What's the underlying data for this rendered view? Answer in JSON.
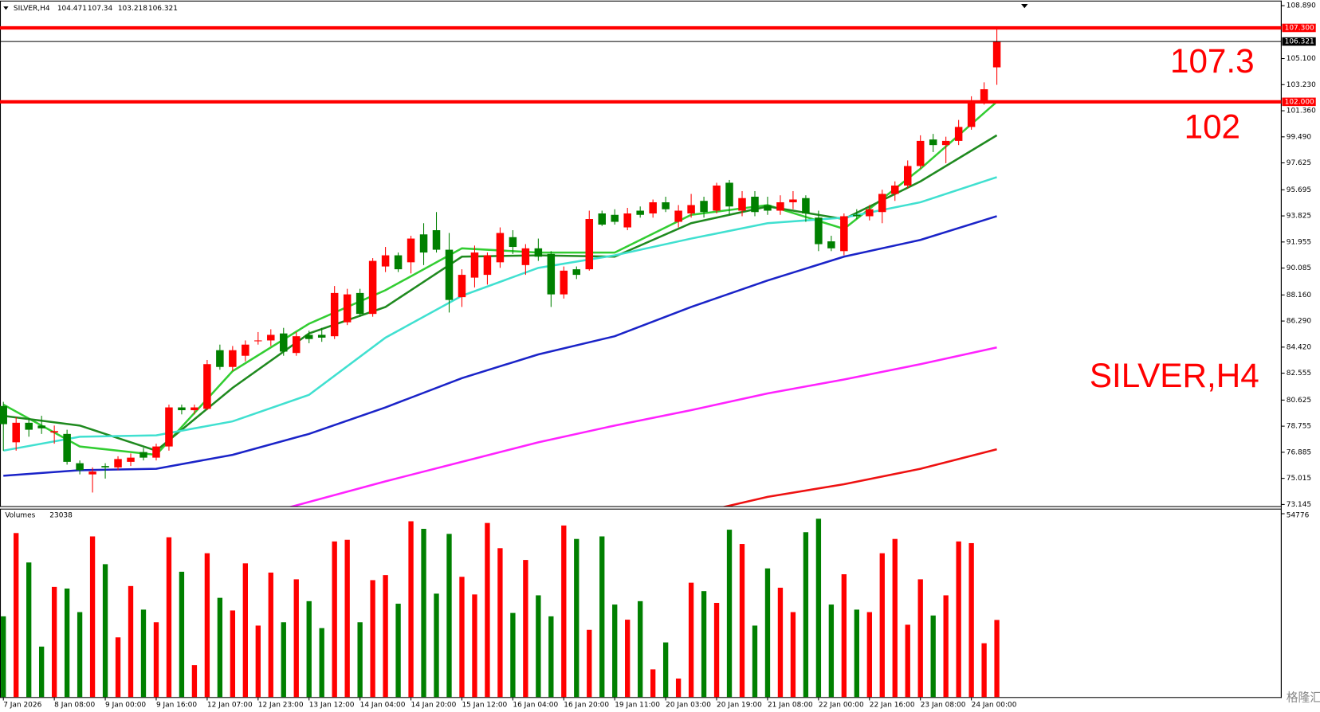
{
  "chart_data": {
    "type": "candlestick",
    "title": "SILVER,H4",
    "categories": [
      "7 Jan 2026",
      null,
      null,
      null,
      "8 Jan 08:00",
      null,
      null,
      null,
      "9 Jan 00:00",
      null,
      null,
      null,
      "9 Jan 16:00",
      null,
      null,
      null,
      "12 Jan 07:00",
      null,
      null,
      null,
      "12 Jan 23:00",
      null,
      null,
      null,
      "13 Jan 12:00",
      null,
      null,
      null,
      "14 Jan 04:00",
      null,
      null,
      null,
      "14 Jan 20:00",
      null,
      null,
      null,
      "15 Jan 12:00",
      null,
      null,
      null,
      "16 Jan 04:00",
      null,
      null,
      null,
      "16 Jan 20:00",
      null,
      null,
      null,
      "19 Jan 11:00",
      null,
      null,
      null,
      "20 Jan 03:00",
      null,
      null,
      null,
      "20 Jan 19:00",
      null,
      null,
      null,
      "21 Jan 08:00",
      null,
      null,
      null,
      "22 Jan 00:00",
      null,
      null,
      null,
      "22 Jan 16:00",
      null,
      null,
      null,
      "23 Jan 08:00",
      null,
      null,
      null,
      "24 Jan 00:00",
      null,
      null
    ],
    "up_color": "#ff0000",
    "down_color": "#008000",
    "ohlc": [
      [
        80.2,
        80.5,
        77.0,
        78.9
      ],
      [
        77.6,
        79.4,
        77.0,
        79.0
      ],
      [
        79.0,
        79.3,
        78.0,
        78.5
      ],
      [
        78.8,
        79.5,
        78.2,
        78.6
      ],
      [
        78.3,
        78.8,
        77.5,
        78.4
      ],
      [
        78.2,
        78.5,
        76.0,
        76.2
      ],
      [
        76.1,
        76.3,
        75.3,
        75.6
      ],
      [
        75.3,
        75.8,
        74.0,
        75.5
      ],
      [
        75.9,
        76.1,
        75.0,
        75.8
      ],
      [
        75.8,
        76.6,
        75.6,
        76.4
      ],
      [
        76.2,
        76.8,
        75.9,
        76.5
      ],
      [
        76.9,
        77.2,
        76.3,
        76.5
      ],
      [
        76.5,
        77.5,
        76.3,
        77.3
      ],
      [
        77.3,
        80.3,
        77.0,
        80.1
      ],
      [
        80.1,
        80.3,
        79.6,
        79.9
      ],
      [
        79.9,
        80.3,
        79.6,
        80.1
      ],
      [
        80.0,
        83.5,
        79.9,
        83.2
      ],
      [
        84.2,
        84.6,
        82.8,
        83.0
      ],
      [
        83.0,
        84.5,
        82.7,
        84.2
      ],
      [
        83.8,
        84.9,
        83.4,
        84.6
      ],
      [
        84.9,
        85.5,
        84.6,
        84.9
      ],
      [
        84.9,
        85.7,
        84.5,
        85.3
      ],
      [
        85.4,
        85.8,
        83.8,
        84.1
      ],
      [
        84.0,
        85.5,
        83.8,
        85.2
      ],
      [
        85.3,
        85.6,
        84.7,
        85.0
      ],
      [
        85.3,
        85.8,
        84.8,
        85.1
      ],
      [
        85.2,
        88.8,
        85.0,
        88.3
      ],
      [
        86.2,
        88.6,
        86.0,
        88.2
      ],
      [
        88.3,
        88.6,
        86.6,
        86.8
      ],
      [
        86.8,
        90.8,
        86.6,
        90.6
      ],
      [
        90.2,
        91.6,
        89.8,
        91.0
      ],
      [
        91.0,
        91.2,
        89.8,
        90.0
      ],
      [
        90.5,
        92.4,
        89.7,
        92.2
      ],
      [
        92.5,
        93.3,
        90.3,
        91.2
      ],
      [
        92.8,
        94.1,
        91.2,
        91.4
      ],
      [
        91.4,
        92.6,
        86.9,
        87.8
      ],
      [
        88.0,
        90.0,
        87.3,
        89.6
      ],
      [
        89.4,
        91.7,
        88.7,
        91.2
      ],
      [
        89.6,
        91.2,
        88.9,
        91.0
      ],
      [
        90.5,
        93.0,
        90.1,
        92.6
      ],
      [
        92.3,
        92.8,
        91.1,
        91.6
      ],
      [
        90.3,
        91.8,
        89.6,
        91.5
      ],
      [
        91.5,
        92.2,
        90.6,
        90.9
      ],
      [
        91.1,
        91.3,
        87.3,
        88.2
      ],
      [
        88.2,
        90.2,
        87.9,
        89.9
      ],
      [
        90.0,
        90.2,
        89.3,
        89.6
      ],
      [
        90.0,
        94.2,
        89.9,
        93.6
      ],
      [
        94.0,
        94.2,
        93.1,
        93.2
      ],
      [
        93.9,
        94.3,
        93.2,
        93.4
      ],
      [
        93.0,
        94.4,
        92.8,
        94.0
      ],
      [
        94.2,
        94.5,
        93.7,
        93.9
      ],
      [
        94.0,
        95.0,
        93.7,
        94.8
      ],
      [
        94.8,
        95.2,
        94.1,
        94.3
      ],
      [
        93.4,
        94.6,
        93.0,
        94.2
      ],
      [
        94.0,
        95.4,
        93.7,
        94.6
      ],
      [
        94.9,
        95.2,
        93.7,
        94.1
      ],
      [
        94.2,
        96.2,
        94.0,
        96.0
      ],
      [
        96.2,
        96.4,
        93.9,
        94.5
      ],
      [
        94.2,
        95.6,
        93.8,
        95.1
      ],
      [
        95.2,
        95.6,
        93.8,
        94.1
      ],
      [
        94.6,
        95.2,
        93.9,
        94.2
      ],
      [
        94.2,
        95.3,
        93.9,
        94.8
      ],
      [
        94.8,
        95.6,
        94.3,
        95.0
      ],
      [
        95.1,
        95.3,
        93.4,
        94.0
      ],
      [
        93.7,
        94.2,
        91.3,
        91.8
      ],
      [
        92.0,
        92.4,
        91.3,
        91.5
      ],
      [
        91.3,
        94.0,
        91.0,
        93.8
      ],
      [
        93.9,
        94.3,
        93.6,
        93.8
      ],
      [
        93.8,
        94.6,
        93.5,
        94.3
      ],
      [
        94.1,
        95.7,
        93.3,
        95.4
      ],
      [
        95.4,
        96.3,
        94.9,
        96.0
      ],
      [
        96.0,
        97.8,
        95.8,
        97.4
      ],
      [
        97.4,
        99.6,
        97.2,
        99.2
      ],
      [
        99.3,
        99.7,
        98.4,
        98.9
      ],
      [
        98.9,
        99.5,
        97.6,
        99.2
      ],
      [
        99.2,
        100.7,
        98.9,
        100.2
      ],
      [
        100.2,
        102.4,
        100.0,
        102.1
      ],
      [
        102.1,
        103.4,
        101.8,
        102.9
      ],
      [
        104.471,
        107.34,
        103.218,
        106.321
      ]
    ],
    "ma_series": [
      {
        "color": "#32cd32",
        "x": [
          0,
          6,
          12,
          18,
          24,
          30,
          36,
          42,
          48,
          54,
          60,
          66,
          72,
          78
        ],
        "values": [
          80.3,
          77.3,
          76.7,
          82.7,
          86.1,
          88.5,
          91.5,
          91.2,
          91.2,
          93.9,
          94.6,
          92.9,
          97.2,
          102.0
        ]
      },
      {
        "color": "#1f8a1f",
        "x": [
          0,
          6,
          12,
          18,
          24,
          30,
          36,
          42,
          48,
          54,
          60,
          66,
          72,
          78
        ],
        "values": [
          79.5,
          78.8,
          77.0,
          81.5,
          85.4,
          87.3,
          90.9,
          91.0,
          90.9,
          93.3,
          94.5,
          93.6,
          96.3,
          99.6
        ]
      },
      {
        "color": "#40e0d0",
        "x": [
          0,
          6,
          12,
          18,
          24,
          30,
          36,
          42,
          48,
          54,
          60,
          66,
          72,
          78
        ],
        "values": [
          77.0,
          78.0,
          78.1,
          79.1,
          81.0,
          85.1,
          88.1,
          90.1,
          91.0,
          92.2,
          93.3,
          93.7,
          94.8,
          96.6
        ]
      },
      {
        "color": "#1a23c8",
        "x": [
          0,
          6,
          12,
          18,
          24,
          30,
          36,
          42,
          48,
          54,
          60,
          66,
          72,
          78
        ],
        "values": [
          75.2,
          75.6,
          75.7,
          76.7,
          78.2,
          80.1,
          82.2,
          83.9,
          85.2,
          87.3,
          89.2,
          90.9,
          92.1,
          93.8
        ]
      },
      {
        "color": "#ff22ff",
        "x": [
          22.5,
          30,
          36,
          42,
          48,
          54,
          60,
          66,
          72,
          78
        ],
        "values": [
          72.96,
          74.8,
          76.2,
          77.6,
          78.8,
          79.9,
          81.1,
          82.1,
          83.2,
          84.4
        ]
      },
      {
        "color": "#ee1111",
        "x": [
          56.25,
          60,
          66,
          72,
          78
        ],
        "values": [
          72.9,
          73.69,
          74.6,
          75.7,
          77.1
        ]
      }
    ],
    "ylim": [
      73.145,
      108.89
    ],
    "yticks": [
      {
        "value": 108.89,
        "label": "108.890"
      },
      {
        "value": 105.1,
        "label": "105.100"
      },
      {
        "value": 103.23,
        "label": "103.230"
      },
      {
        "value": 101.36,
        "label": "101.360"
      },
      {
        "value": 99.49,
        "label": "99.490"
      },
      {
        "value": 97.625,
        "label": "97.625"
      },
      {
        "value": 95.695,
        "label": "95.695"
      },
      {
        "value": 93.825,
        "label": "93.825"
      },
      {
        "value": 91.955,
        "label": "91.955"
      },
      {
        "value": 90.085,
        "label": "90.085"
      },
      {
        "value": 88.16,
        "label": "88.160"
      },
      {
        "value": 86.29,
        "label": "86.290"
      },
      {
        "value": 84.42,
        "label": "84.420"
      },
      {
        "value": 82.555,
        "label": "82.555"
      },
      {
        "value": 80.625,
        "label": "80.625"
      },
      {
        "value": 78.755,
        "label": "78.755"
      },
      {
        "value": 76.885,
        "label": "76.885"
      },
      {
        "value": 75.015,
        "label": "75.015"
      },
      {
        "value": 73.145,
        "label": "73.145"
      }
    ],
    "levels": [
      {
        "value": 107.3,
        "label": "107.300",
        "color": "#ff0000"
      },
      {
        "value": 102,
        "label": "102.000",
        "color": "#ff0000"
      },
      {
        "value": 106.321,
        "label": "106.321",
        "color": "#000000"
      }
    ],
    "annotations": [
      "107.3",
      "102",
      "SILVER,H4"
    ],
    "volume": {
      "title": "Volumes",
      "values": [
        24120,
        49000,
        40210,
        15080,
        32920,
        32420,
        25380,
        48000,
        39700,
        17840,
        33170,
        26130,
        22360,
        47740,
        37440,
        9550,
        42970,
        29650,
        25880,
        39950,
        21360,
        37190,
        22360,
        35180,
        28650,
        20600,
        46490,
        46990,
        22360,
        34930,
        36430,
        27890,
        52520,
        50260,
        30900,
        48750,
        35930,
        30660,
        52010,
        44480,
        25130,
        40960,
        30400,
        24120,
        51260,
        47240,
        20100,
        48000,
        27640,
        23120,
        28650,
        8290,
        16330,
        5530,
        34170,
        31660,
        28140,
        50000,
        45730,
        21360,
        38440,
        32670,
        25380,
        49250,
        53270,
        27640,
        36690,
        26130,
        25380,
        42970,
        47240,
        21610,
        35180,
        24370,
        30400,
        46490,
        45990,
        16080,
        23038
      ],
      "ylim": [
        0,
        54776
      ],
      "yticks": [
        54776
      ]
    },
    "watermark": "格隆汇"
  }
}
